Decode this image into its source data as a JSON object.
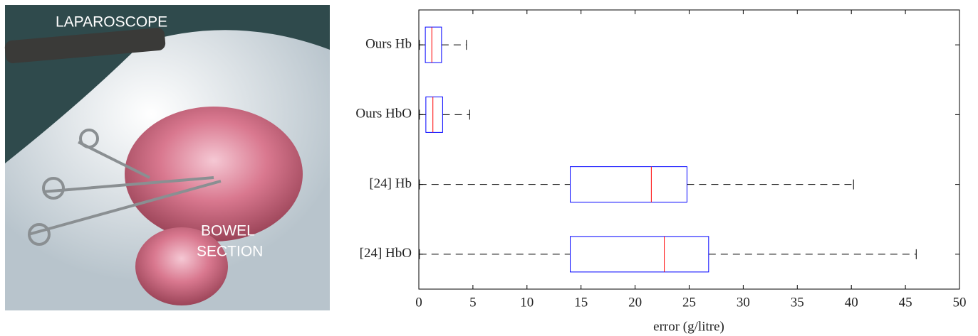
{
  "photo": {
    "labels": [
      "LAPAROSCOPE",
      "BOWEL",
      "SECTION"
    ]
  },
  "chart_data": {
    "type": "box",
    "categories": [
      "Ours Hb",
      "Ours HbO",
      "[24] Hb",
      "[24] HbO"
    ],
    "whisker_low": [
      0.05,
      0.05,
      0.05,
      0.05
    ],
    "q1": [
      0.6,
      0.65,
      14.0,
      14.0
    ],
    "median": [
      1.2,
      1.3,
      21.5,
      22.7
    ],
    "q3": [
      2.1,
      2.2,
      24.8,
      26.8
    ],
    "whisker_high": [
      4.4,
      4.7,
      40.2,
      46.0
    ],
    "box_color": "#0000ff",
    "median_color": "#ff0000",
    "whisker_color": "#000000",
    "xlabel": "error (g/litre)",
    "xlim": [
      0,
      50
    ],
    "xticks": [
      0,
      5,
      10,
      15,
      20,
      25,
      30,
      35,
      40,
      45,
      50
    ]
  }
}
